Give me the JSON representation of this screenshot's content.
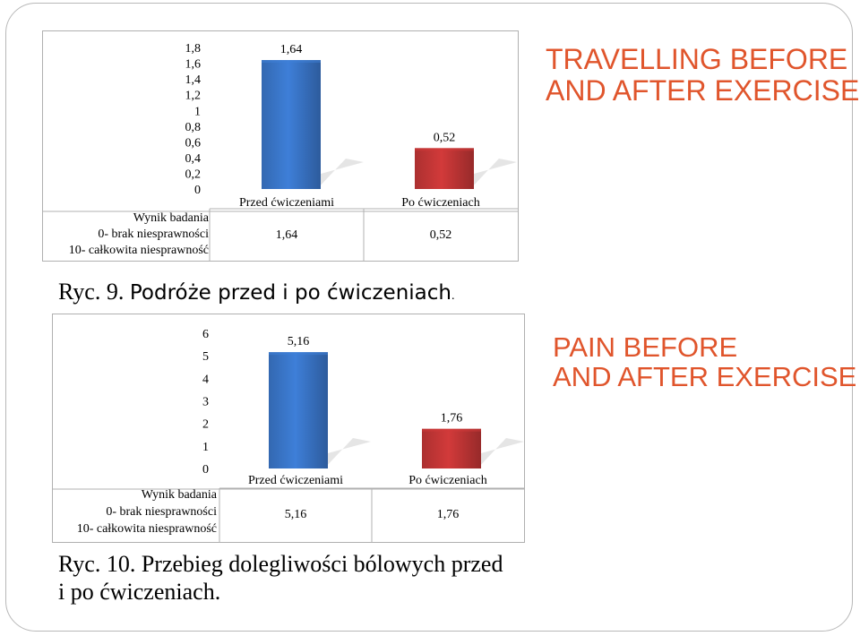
{
  "chart_data": [
    {
      "type": "bar",
      "categories": [
        "Przed ćwiczeniami",
        "Po ćwiczeniach"
      ],
      "series": [
        {
          "name": "Wynik badania 0- brak niesprawności 10- całkowita niesprawność",
          "legend_lines": [
            "Wynik badania",
            "0- brak niesprawności",
            "10- całkowita niesprawność"
          ],
          "values": [
            1.64,
            0.52
          ],
          "value_labels": [
            "1,64",
            "0,52"
          ]
        }
      ],
      "yticks": [
        "0",
        "0,2",
        "0,4",
        "0,6",
        "0,8",
        "1",
        "1,2",
        "1,4",
        "1,6",
        "1,8"
      ],
      "ylim": [
        0,
        1.8
      ],
      "bar_colors": [
        "#3e7fd8",
        "#d23a3a"
      ],
      "data_table": true,
      "grid": false
    },
    {
      "type": "bar",
      "categories": [
        "Przed ćwiczeniami",
        "Po ćwiczeniach"
      ],
      "series": [
        {
          "name": "Wynik badania 0- brak niesprawności 10- całkowita niesprawność",
          "legend_lines": [
            "Wynik badania",
            "0- brak niesprawności",
            "10- całkowita niesprawność"
          ],
          "values": [
            5.16,
            1.76
          ],
          "value_labels": [
            "5,16",
            "1,76"
          ]
        }
      ],
      "yticks": [
        "0",
        "1",
        "2",
        "3",
        "4",
        "5",
        "6"
      ],
      "ylim": [
        0,
        6
      ],
      "bar_colors": [
        "#3e7fd8",
        "#d23a3a"
      ],
      "data_table": true,
      "grid": false
    }
  ],
  "titles": {
    "chart1": [
      "TRAVELLING BEFORE",
      "AND AFTER EXERCISE"
    ],
    "chart2": [
      "PAIN BEFORE",
      "AND AFTER EXERCISE"
    ]
  },
  "captions": {
    "chart1": {
      "prefix": "Ryc. 9. ",
      "rest": "Podróże przed i po ćwiczeniach",
      "period": "."
    },
    "chart2": {
      "line1": "Ryc. 10. Przebieg dolegliwości bólowych przed",
      "line2": "i po ćwiczeniach."
    }
  },
  "colors": {
    "title_accent": "#e0552c",
    "bar_blue": "#3e7fd8",
    "bar_red": "#d23a3a"
  }
}
